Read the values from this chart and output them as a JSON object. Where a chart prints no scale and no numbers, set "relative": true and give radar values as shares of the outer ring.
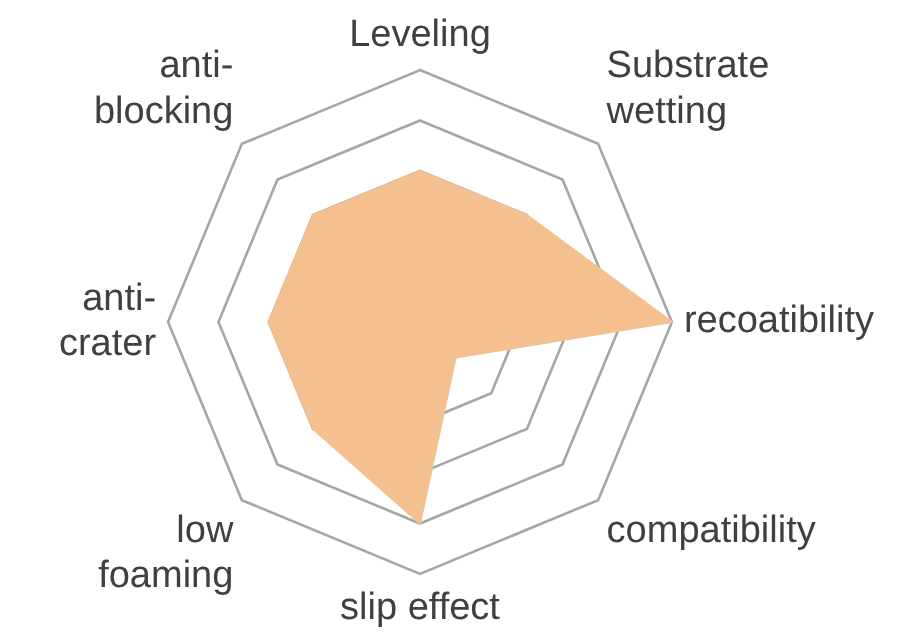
{
  "chart_data": {
    "type": "radar",
    "relative": true,
    "categories": [
      "Leveling",
      "Substrate\nwetting",
      "recoatibility",
      "compatibility",
      "slip effect",
      "low\nfoaming",
      "anti-\ncrater",
      "anti-\nblocking"
    ],
    "series": [
      {
        "color": "#f4c08f",
        "values": [
          0.6,
          0.6,
          1.0,
          0.2,
          0.8,
          0.6,
          0.6,
          0.6
        ]
      }
    ],
    "legend": false,
    "marker": "none"
  }
}
